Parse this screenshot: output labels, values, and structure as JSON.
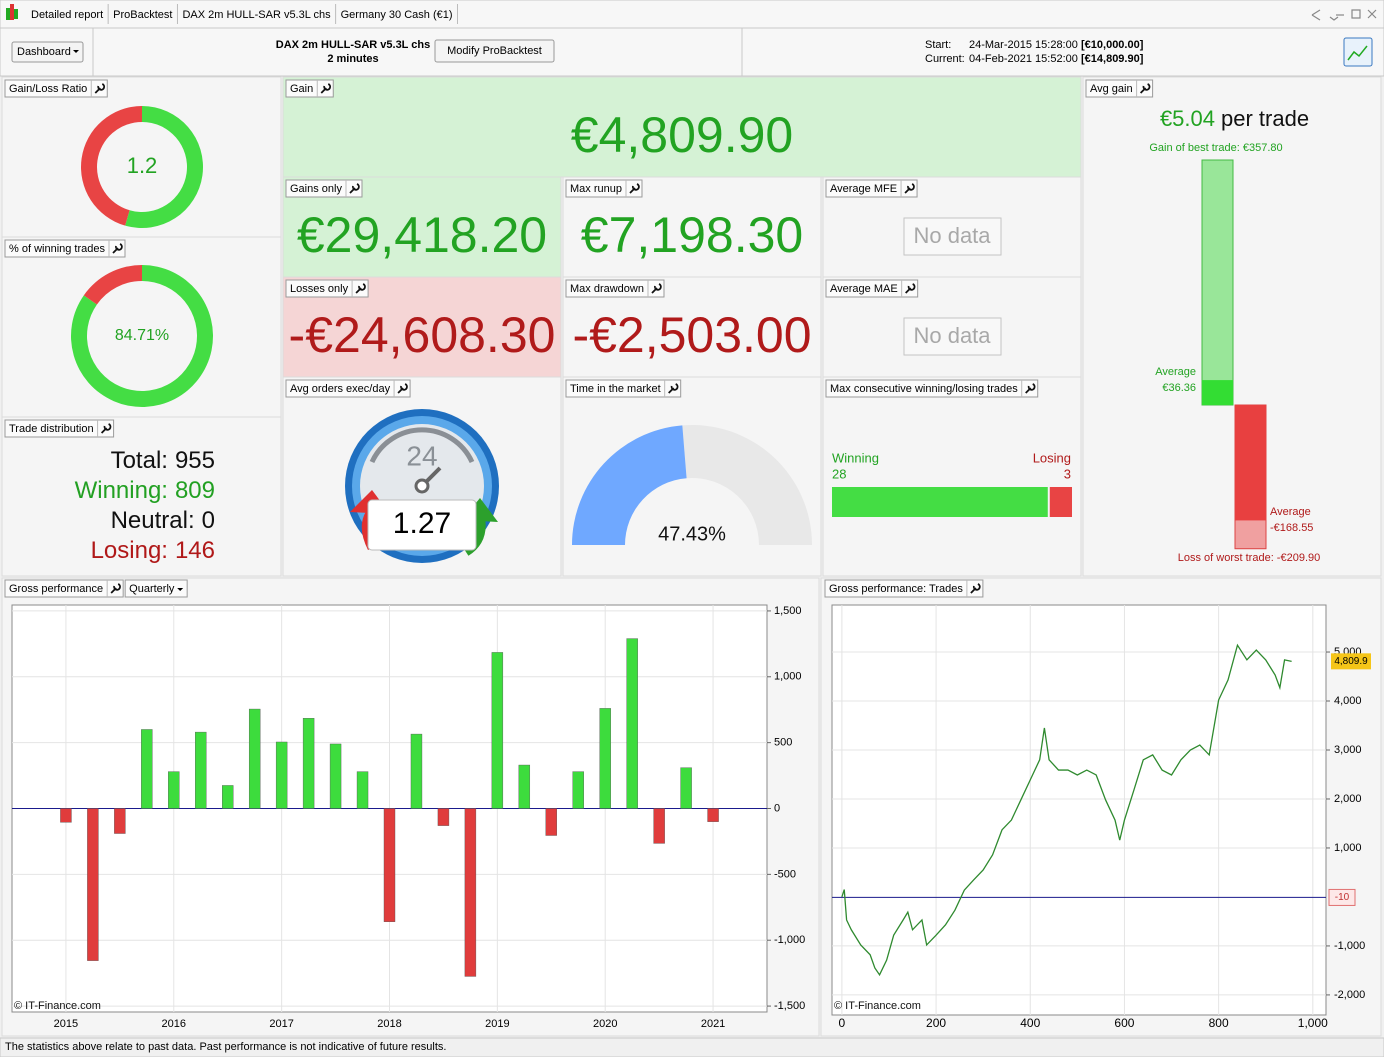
{
  "tabs": [
    "Detailed report",
    "ProBacktest",
    "DAX 2m HULL-SAR v5.3L chs",
    "Germany 30 Cash (€1)"
  ],
  "toolbar": {
    "dashboard_button": "Dashboard",
    "system_name": "DAX 2m HULL-SAR v5.3L chs",
    "timeframe": "2 minutes",
    "modify_button": "Modify ProBacktest",
    "start_label": "Start:",
    "start_date": "24-Mar-2015 15:28:00",
    "start_capital": "[€10,000.00]",
    "current_label": "Current:",
    "current_date": "04-Feb-2021 15:52:00",
    "current_capital": "[€14,809.90]"
  },
  "panels": {
    "gain_loss_ratio": {
      "title": "Gain/Loss Ratio",
      "value": 1.2
    },
    "winning_trades_pct": {
      "title": "% of winning trades",
      "value": 84.71,
      "value_label": "84.71%"
    },
    "trade_distribution": {
      "title": "Trade distribution",
      "rows": [
        {
          "label": "Total:",
          "value": 955,
          "color": "#111111"
        },
        {
          "label": "Winning:",
          "value": 809,
          "color": "#22a022"
        },
        {
          "label": "Neutral:",
          "value": 0,
          "color": "#111111"
        },
        {
          "label": "Losing:",
          "value": 146,
          "color": "#b01818"
        }
      ]
    },
    "gain": {
      "title": "Gain",
      "value": 4809.9,
      "value_label": "€4,809.90"
    },
    "gains_only": {
      "title": "Gains only",
      "value": 29418.2,
      "value_label": "€29,418.20"
    },
    "max_runup": {
      "title": "Max runup",
      "value": 7198.3,
      "value_label": "€7,198.30"
    },
    "average_mfe": {
      "title": "Average MFE",
      "value": "No data"
    },
    "losses_only": {
      "title": "Losses only",
      "value": -24608.3,
      "value_label": "-€24,608.30"
    },
    "max_drawdown": {
      "title": "Max drawdown",
      "value": -2503,
      "value_label": "-€2,503.00"
    },
    "average_mae": {
      "title": "Average MAE",
      "value": "No data"
    },
    "avg_orders": {
      "title": "Avg orders exec/day",
      "icon_text": "24",
      "value": 1.27
    },
    "time_in_market": {
      "title": "Time in the market",
      "value": 47.43,
      "value_label": "47.43%"
    },
    "max_consecutive": {
      "title": "Max consecutive winning/losing trades",
      "winning_label": "Winning",
      "winning": 28,
      "losing_label": "Losing",
      "losing": 3
    },
    "avg_gain": {
      "title": "Avg gain",
      "value": 5.04,
      "value_label": "€5.04",
      "unit": "per trade",
      "best_label": "Gain of best trade: €357.80",
      "best": 357.8,
      "average_gain_label": "Average",
      "average_gain": 36.36,
      "average_gain_value_label": "€36.36",
      "average_loss_label": "Average",
      "average_loss": -168.55,
      "average_loss_value_label": "-€168.55",
      "worst_label": "Loss of worst trade: -€209.90",
      "worst": -209.9
    }
  },
  "chart_data": [
    {
      "type": "bar",
      "title": "Gross performance",
      "period": "Quarterly",
      "watermark": "© IT-Finance.com",
      "categories": [
        "2015",
        null,
        null,
        null,
        "2016",
        null,
        null,
        null,
        "2017",
        null,
        null,
        null,
        "2018",
        null,
        null,
        null,
        "2019",
        null,
        null,
        null,
        "2020",
        null,
        null,
        null,
        "2021"
      ],
      "values": [
        -105,
        -1155,
        -190,
        600,
        280,
        580,
        175,
        755,
        505,
        685,
        490,
        280,
        -860,
        565,
        -130,
        -1275,
        1185,
        330,
        -205,
        280,
        760,
        1290,
        -265,
        310,
        -100
      ],
      "positive_color": "#3ddc3d",
      "negative_color": "#e03c3c",
      "ylim": [
        -1545,
        1545
      ],
      "yticks": [
        {
          "value": 1500,
          "label": "1,500"
        },
        {
          "value": 1000,
          "label": "1,000"
        },
        500,
        0,
        -500,
        {
          "value": -1000,
          "label": "-1,000"
        },
        {
          "value": -1500,
          "label": "-1,500"
        }
      ],
      "grid": true
    },
    {
      "type": "line",
      "title": "Gross performance: Trades",
      "watermark": "© IT-Finance.com",
      "x": [
        0,
        5,
        10,
        20,
        40,
        60,
        70,
        80,
        95,
        110,
        130,
        140,
        150,
        170,
        180,
        200,
        220,
        240,
        260,
        280,
        300,
        320,
        340,
        360,
        380,
        400,
        420,
        430,
        440,
        460,
        480,
        500,
        520,
        540,
        560,
        580,
        590,
        600,
        620,
        640,
        660,
        680,
        700,
        720,
        740,
        760,
        780,
        800,
        820,
        840,
        860,
        880,
        900,
        920,
        930,
        940,
        955
      ],
      "values": [
        0,
        150,
        -470,
        -670,
        -980,
        -1180,
        -1450,
        -1590,
        -1290,
        -780,
        -470,
        -310,
        -670,
        -470,
        -980,
        -780,
        -570,
        -270,
        140,
        350,
        550,
        860,
        1370,
        1570,
        1980,
        2390,
        2800,
        3450,
        2800,
        2590,
        2590,
        2490,
        2590,
        2490,
        1980,
        1570,
        1160,
        1570,
        2180,
        2800,
        2900,
        2590,
        2490,
        2800,
        3000,
        3100,
        2900,
        4020,
        4430,
        5140,
        4840,
        5040,
        4840,
        4530,
        4270,
        4840,
        4809.9
      ],
      "color": "#2f8a2f",
      "xlim": [
        -21,
        1028
      ],
      "ylim": [
        -2410,
        5960
      ],
      "xticks": [
        0,
        200,
        400,
        600,
        800,
        {
          "value": 1000,
          "label": "1,000"
        }
      ],
      "yticks": [
        {
          "value": 5000,
          "label": "5,000"
        },
        {
          "value": 4000,
          "label": "4,000"
        },
        {
          "value": 3000,
          "label": "3,000"
        },
        {
          "value": 2000,
          "label": "2,000"
        },
        {
          "value": 1000,
          "label": "1,000"
        },
        {
          "value": -1000,
          "label": "-1,000"
        },
        {
          "value": -2000,
          "label": "-2,000"
        }
      ],
      "grid": true,
      "baseline": {
        "value": -10,
        "label": "-10"
      },
      "last_value": {
        "value": 4809.9,
        "label": "4,809.9"
      }
    }
  ],
  "footer": "The statistics above relate to past data. Past performance is not indicative of future results."
}
